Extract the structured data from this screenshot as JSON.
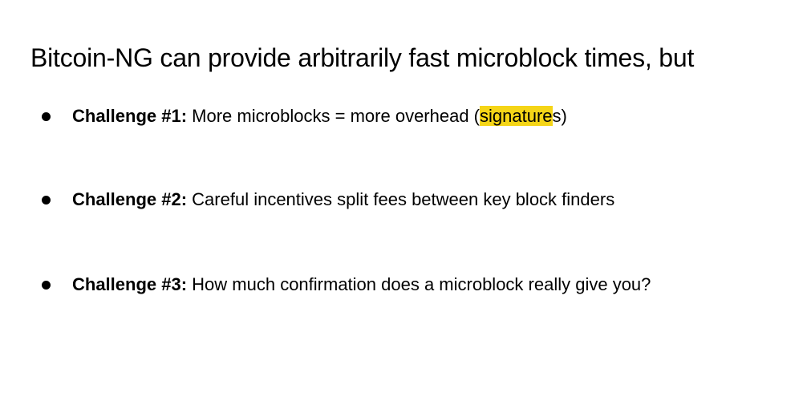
{
  "slide": {
    "title": "Bitcoin-NG can provide arbitrarily fast microblock times, but",
    "highlight_color": "#f5d517",
    "bullets": [
      {
        "label": "Challenge #1:",
        "text_before": " More microblocks = more overhead (",
        "highlight": "signature",
        "text_after": "s)"
      },
      {
        "label": "Challenge #2:",
        "text": " Careful incentives split fees between key block finders"
      },
      {
        "label": "Challenge #3:",
        "text": " How much confirmation does a microblock really give you?"
      }
    ]
  }
}
